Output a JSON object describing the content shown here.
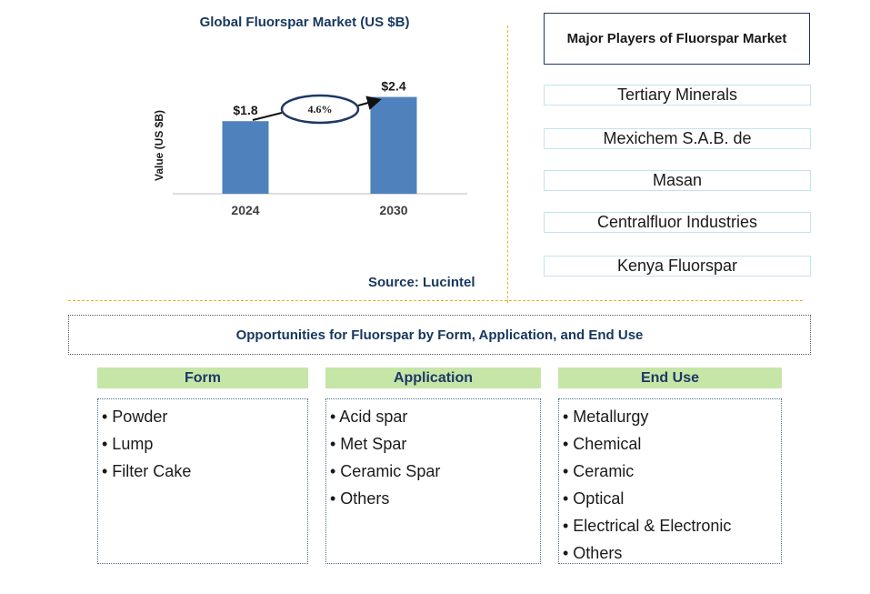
{
  "chart_data": {
    "type": "bar",
    "title": "Global Fluorspar Market (US $B)",
    "ylabel": "Value (US $B)",
    "categories": [
      "2024",
      "2030"
    ],
    "values": [
      1.8,
      2.4
    ],
    "value_labels": [
      "$1.8",
      "$2.4"
    ],
    "cagr_label": "4.6%",
    "bar_color": "#4f81bd",
    "ylim": [
      0,
      3.0
    ]
  },
  "source": "Source: Lucintel",
  "players": {
    "title": "Major Players of Fluorspar Market",
    "items": [
      "Tertiary Minerals",
      "Mexichem S.A.B. de",
      "Masan",
      "Centralfluor Industries",
      "Kenya Fluorspar"
    ]
  },
  "opportunities": {
    "title": "Opportunities for Fluorspar by Form, Application, and End Use",
    "categories": [
      {
        "name": "Form",
        "items": [
          "• Powder",
          "• Lump",
          "• Filter Cake"
        ]
      },
      {
        "name": "Application",
        "items": [
          "• Acid spar",
          "• Met Spar",
          "• Ceramic Spar",
          "• Others"
        ]
      },
      {
        "name": "End Use",
        "items": [
          "• Metallurgy",
          "• Chemical",
          "• Ceramic",
          "• Optical",
          "• Electrical & Electronic",
          "• Others"
        ]
      }
    ]
  },
  "colors": {
    "accent": "#17375e",
    "header_green": "#c6e6a8",
    "divider": "#e6b422"
  }
}
